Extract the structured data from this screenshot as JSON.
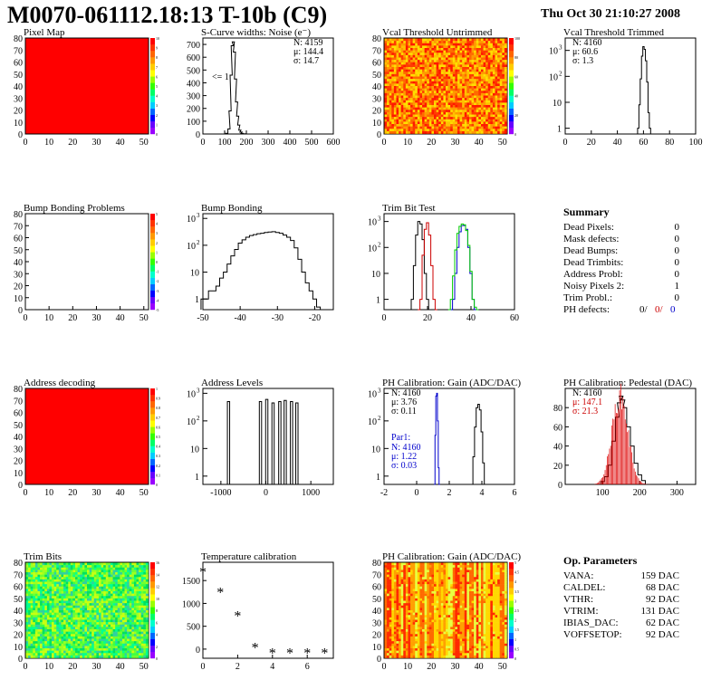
{
  "header": {
    "title": "M0070-061112.18:13 T-10b (C9)",
    "date": "Thu Oct 30 21:10:27 2008"
  },
  "chart_data": [
    {
      "id": "pixel-map",
      "type": "heatmap",
      "title": "Pixel Map",
      "xlim": [
        0,
        52
      ],
      "ylim": [
        0,
        80
      ],
      "xticks": [
        0,
        10,
        20,
        30,
        40,
        50
      ],
      "yticks": [
        0,
        10,
        20,
        30,
        40,
        50,
        60,
        70,
        80
      ],
      "fill": "uniform",
      "fill_color": "#ff0000",
      "zlim": [
        0,
        10
      ],
      "zticks": [
        "0",
        "1",
        "2",
        "3",
        "4",
        "5",
        "6",
        "7",
        "8",
        "9",
        "10"
      ]
    },
    {
      "id": "s-curve-noise",
      "type": "line",
      "title": "S-Curve widths: Noise (e⁻)",
      "xlim": [
        0,
        600
      ],
      "ylim": [
        0,
        750
      ],
      "xticks": [
        0,
        100,
        200,
        300,
        400,
        500,
        600
      ],
      "yticks": [
        0,
        100,
        200,
        300,
        400,
        500,
        600,
        700
      ],
      "stats": [
        "N: 4159",
        "μ: 144.4",
        "σ: 14.7"
      ],
      "annotation": "<= 1",
      "series": [
        {
          "color": "#000000",
          "x": [
            100,
            110,
            120,
            125,
            130,
            135,
            140,
            145,
            150,
            155,
            160,
            165,
            170,
            175,
            180,
            190,
            200
          ],
          "y": [
            0,
            5,
            40,
            180,
            460,
            690,
            720,
            640,
            430,
            250,
            140,
            70,
            30,
            15,
            5,
            2,
            0
          ]
        }
      ]
    },
    {
      "id": "vcal-untrimmed",
      "type": "heatmap",
      "title": "Vcal Threshold Untrimmed",
      "xlim": [
        0,
        52
      ],
      "ylim": [
        0,
        80
      ],
      "xticks": [
        0,
        10,
        20,
        30,
        40,
        50
      ],
      "yticks": [
        0,
        10,
        20,
        30,
        40,
        50,
        60,
        70,
        80
      ],
      "fill": "random",
      "palette": [
        "#ff9a00",
        "#ff6a00",
        "#ff3a00",
        "#ff1800",
        "#ffc000",
        "#ffde00"
      ],
      "zlim": [
        0,
        100
      ],
      "zticks": [
        "0",
        "20",
        "40",
        "60",
        "80",
        "100"
      ]
    },
    {
      "id": "vcal-trimmed",
      "type": "line",
      "title": "Vcal Threshold Trimmed",
      "xlim": [
        0,
        100
      ],
      "log": true,
      "ylog": [
        0.6,
        3000
      ],
      "xticks": [
        0,
        20,
        40,
        60,
        80,
        100
      ],
      "stats": [
        "N: 4160",
        "μ: 60.6",
        "σ: 1.3"
      ],
      "series": [
        {
          "color": "#000000",
          "x": [
            56,
            57,
            58,
            59,
            60,
            61,
            62,
            63,
            64,
            65
          ],
          "y": [
            1,
            8,
            80,
            600,
            1400,
            1100,
            400,
            60,
            4,
            1
          ]
        }
      ]
    },
    {
      "id": "bump-bonding-problems",
      "type": "heatmap",
      "title": "Bump Bonding Problems",
      "xlim": [
        0,
        52
      ],
      "ylim": [
        0,
        80
      ],
      "xticks": [
        0,
        10,
        20,
        30,
        40,
        50
      ],
      "yticks": [
        0,
        10,
        20,
        30,
        40,
        50,
        60,
        70,
        80
      ],
      "fill": "empty",
      "zlim": [
        -5,
        5
      ],
      "zticks": [
        "-5",
        "-4",
        "-3",
        "-2",
        "-1",
        "0",
        "1",
        "2",
        "3",
        "4",
        "5"
      ]
    },
    {
      "id": "bump-bonding",
      "type": "line",
      "title": "Bump Bonding",
      "xlim": [
        -50,
        -15
      ],
      "log": true,
      "ylog": [
        0.4,
        1500
      ],
      "xticks": [
        -50,
        -40,
        -30,
        -20
      ],
      "series": [
        {
          "color": "#000000",
          "x": [
            -50,
            -49,
            -48,
            -47,
            -46,
            -45,
            -44,
            -43,
            -42,
            -41,
            -40,
            -39,
            -38,
            -37,
            -36,
            -35,
            -34,
            -33,
            -32,
            -31,
            -30,
            -29,
            -28,
            -27,
            -26,
            -25,
            -24,
            -23,
            -22,
            -21,
            -20,
            -19
          ],
          "y": [
            1,
            1,
            2,
            2,
            3,
            6,
            10,
            20,
            40,
            70,
            120,
            160,
            200,
            230,
            250,
            270,
            280,
            300,
            310,
            320,
            300,
            280,
            240,
            200,
            150,
            80,
            30,
            10,
            4,
            2,
            1,
            0.5
          ]
        }
      ]
    },
    {
      "id": "trim-bit-test",
      "type": "line",
      "title": "Trim Bit Test",
      "xlim": [
        0,
        60
      ],
      "log": true,
      "ylog": [
        0.4,
        2000
      ],
      "xticks": [
        0,
        20,
        40,
        60
      ],
      "series": [
        {
          "color": "#000000",
          "x": [
            12,
            13,
            14,
            15,
            16,
            17,
            18,
            19,
            20,
            21
          ],
          "y": [
            0.4,
            1,
            20,
            300,
            1000,
            800,
            200,
            10,
            1,
            0.4
          ]
        },
        {
          "color": "#cc0000",
          "x": [
            16,
            17,
            18,
            19,
            20,
            21,
            22,
            23,
            24
          ],
          "y": [
            0.4,
            1,
            50,
            500,
            900,
            300,
            20,
            1,
            0.4
          ]
        },
        {
          "color": "#0000cc",
          "x": [
            31,
            32,
            33,
            34,
            35,
            36,
            37,
            38,
            39,
            40,
            41,
            42
          ],
          "y": [
            0.4,
            1,
            10,
            100,
            400,
            700,
            700,
            500,
            100,
            10,
            1,
            0.4
          ]
        },
        {
          "color": "#00cc00",
          "x": [
            30,
            31,
            32,
            33,
            34,
            35,
            36,
            37,
            38,
            39,
            40,
            41,
            42,
            43
          ],
          "y": [
            0.4,
            1,
            8,
            80,
            350,
            650,
            800,
            750,
            450,
            120,
            12,
            1,
            0.5,
            0.4
          ]
        }
      ]
    },
    {
      "id": "summary",
      "type": "table",
      "title": "Summary",
      "rows": [
        {
          "label": "Dead Pixels:",
          "value": "0"
        },
        {
          "label": "Mask defects:",
          "value": "0"
        },
        {
          "label": "Dead Bumps:",
          "value": "0"
        },
        {
          "label": "Dead Trimbits:",
          "value": "0"
        },
        {
          "label": "Address Probl:",
          "value": "0"
        },
        {
          "label": "Noisy Pixels 2:",
          "value": "1"
        },
        {
          "label": "Trim Probl.:",
          "value": "0"
        }
      ],
      "ph_label": "PH defects:",
      "ph_values": [
        {
          "text": "0/",
          "color": "#000000"
        },
        {
          "text": "0/",
          "color": "#cc0000"
        },
        {
          "text": "0",
          "color": "#0000cc"
        }
      ]
    },
    {
      "id": "address-decoding",
      "type": "heatmap",
      "title": "Address decoding",
      "xlim": [
        0,
        52
      ],
      "ylim": [
        0,
        80
      ],
      "xticks": [
        0,
        10,
        20,
        30,
        40,
        50
      ],
      "yticks": [
        0,
        10,
        20,
        30,
        40,
        50,
        60,
        70,
        80
      ],
      "fill": "uniform",
      "fill_color": "#ff0000",
      "zlim": [
        0,
        1
      ],
      "zticks": [
        "0",
        "0.1",
        "0.2",
        "0.3",
        "0.4",
        "0.5",
        "0.6",
        "0.7",
        "0.8",
        "0.9",
        "1"
      ]
    },
    {
      "id": "address-levels",
      "type": "line",
      "title": "Address Levels",
      "xlim": [
        -1400,
        1500
      ],
      "log": true,
      "ylog": [
        0.5,
        1500
      ],
      "xticks": [
        -1000,
        0,
        1000
      ],
      "spikes": [
        {
          "center": -830,
          "height": 500
        },
        {
          "center": -120,
          "height": 500
        },
        {
          "center": 20,
          "height": 600
        },
        {
          "center": 160,
          "height": 450
        },
        {
          "center": 310,
          "height": 500
        },
        {
          "center": 430,
          "height": 550
        },
        {
          "center": 570,
          "height": 500
        },
        {
          "center": 690,
          "height": 450
        }
      ]
    },
    {
      "id": "ph-gain",
      "type": "line",
      "title": "PH Calibration: Gain (ADC/DAC)",
      "xlim": [
        -2,
        6
      ],
      "log": true,
      "ylog": [
        0.5,
        1500
      ],
      "xticks": [
        -2,
        0,
        2,
        4,
        6
      ],
      "stats": [
        "N: 4160",
        "μ: 3.76",
        "σ: 0.11"
      ],
      "stats2_title": "Par1:",
      "stats2": [
        "N: 4160",
        "μ: 1.22",
        "σ: 0.03"
      ],
      "series": [
        {
          "color": "#0000cc",
          "x": [
            1.1,
            1.15,
            1.2,
            1.25,
            1.3,
            1.35,
            1.4
          ],
          "y": [
            0.5,
            30,
            800,
            1000,
            100,
            2,
            0.5
          ]
        },
        {
          "color": "#000000",
          "x": [
            3.4,
            3.5,
            3.6,
            3.7,
            3.8,
            3.9,
            4.0,
            4.1,
            4.2
          ],
          "y": [
            0.5,
            5,
            60,
            300,
            400,
            250,
            40,
            3,
            0.5
          ]
        }
      ]
    },
    {
      "id": "ph-pedestal",
      "type": "line",
      "title": "PH Calibration: Pedestal (DAC)",
      "xlim": [
        0,
        350
      ],
      "ylim": [
        0,
        100
      ],
      "xticks": [
        100,
        200,
        300
      ],
      "yticks": [
        0,
        20,
        40,
        60,
        80
      ],
      "stats": [
        "N: 4160",
        "μ: 147.1",
        "σ: 21.3"
      ],
      "series": [
        {
          "color": "#000000",
          "x": [
            90,
            100,
            110,
            120,
            130,
            140,
            145,
            150,
            155,
            160,
            170,
            180,
            190,
            200,
            210,
            220
          ],
          "y": [
            0,
            3,
            8,
            20,
            45,
            70,
            85,
            92,
            88,
            80,
            60,
            40,
            22,
            10,
            4,
            0
          ]
        }
      ]
    },
    {
      "id": "trim-bits",
      "type": "heatmap",
      "title": "Trim Bits",
      "xlim": [
        0,
        52
      ],
      "ylim": [
        0,
        80
      ],
      "xticks": [
        0,
        10,
        20,
        30,
        40,
        50
      ],
      "yticks": [
        0,
        10,
        20,
        30,
        40,
        50,
        60,
        70,
        80
      ],
      "fill": "random",
      "palette": [
        "#40ff40",
        "#70ff30",
        "#00e060",
        "#a0ff20",
        "#30d0a0",
        "#00ff90",
        "#c8ff10"
      ],
      "zlim": [
        0,
        16
      ],
      "zticks": [
        "0",
        "2",
        "4",
        "6",
        "8",
        "10",
        "12",
        "14",
        "16"
      ]
    },
    {
      "id": "temperature-calibration",
      "type": "scatter",
      "title": "Temperature calibration",
      "xlim": [
        0,
        7.5
      ],
      "ylim": [
        -200,
        1900
      ],
      "xticks": [
        0,
        2,
        4,
        6
      ],
      "yticks": [
        0,
        500,
        1000,
        1500
      ],
      "series": [
        {
          "color": "#000000",
          "x": [
            0,
            1,
            2,
            3,
            4,
            5,
            6,
            7
          ],
          "y": [
            1680,
            1240,
            720,
            30,
            -90,
            -90,
            -90,
            -90
          ]
        }
      ]
    },
    {
      "id": "ph-gain-map",
      "type": "heatmap",
      "title": "PH Calibration: Gain (ADC/DAC)",
      "xlim": [
        0,
        52
      ],
      "ylim": [
        0,
        80
      ],
      "xticks": [
        0,
        10,
        20,
        30,
        40,
        50
      ],
      "yticks": [
        0,
        10,
        20,
        30,
        40,
        50,
        60,
        70,
        80
      ],
      "fill": "columns",
      "palette": [
        "#ff2a00",
        "#ff6a00",
        "#ffa000",
        "#ffd800",
        "#e8ff40"
      ],
      "zlim": [
        0,
        5
      ],
      "zticks": [
        "0",
        "0.5",
        "1",
        "1.5",
        "2",
        "2.5",
        "3",
        "3.5",
        "4",
        "4.5",
        "5"
      ]
    },
    {
      "id": "op-parameters",
      "type": "table",
      "title": "Op. Parameters",
      "rows": [
        {
          "label": "VANA:",
          "value": "159 DAC"
        },
        {
          "label": "CALDEL:",
          "value": "68 DAC"
        },
        {
          "label": "VTHR:",
          "value": "92 DAC"
        },
        {
          "label": "VTRIM:",
          "value": "131 DAC"
        },
        {
          "label": "IBIAS_DAC:",
          "value": "62 DAC"
        },
        {
          "label": "VOFFSETOP:",
          "value": "92 DAC"
        }
      ]
    }
  ]
}
